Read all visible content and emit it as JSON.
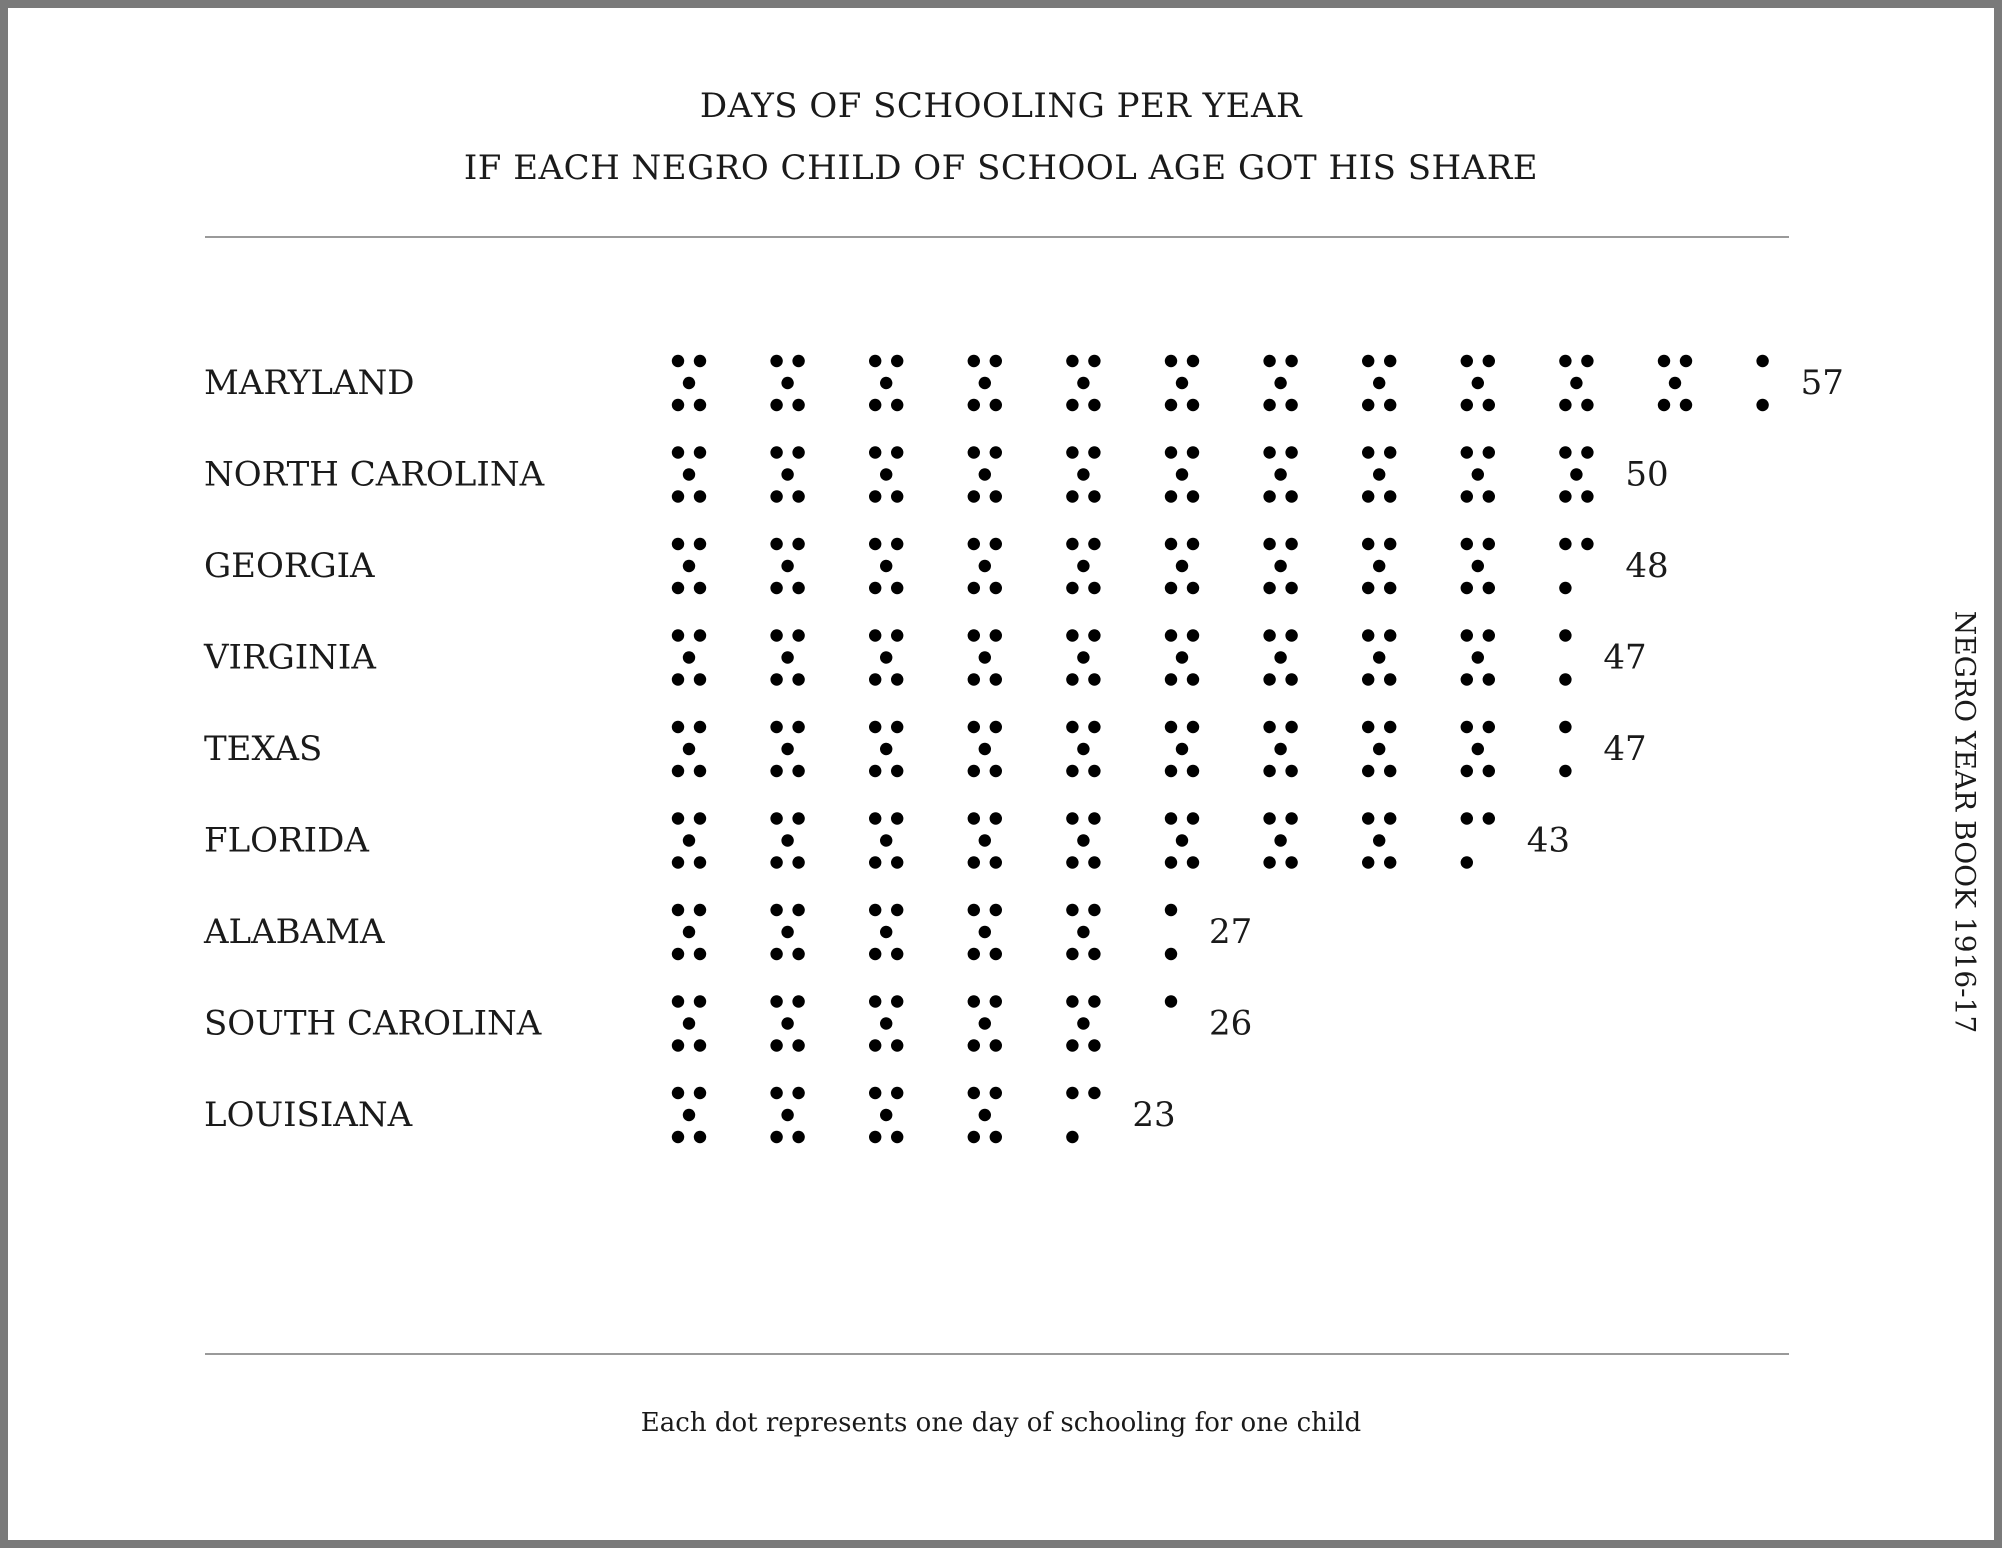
{
  "title": {
    "line1": "DAYS OF SCHOOLING PER YEAR",
    "line2": "IF EACH NEGRO CHILD OF SCHOOL AGE GOT HIS SHARE"
  },
  "footer": "Each dot represents one day of schooling for one child",
  "source": "NEGRO YEAR BOOK 1916-17",
  "colors": {
    "dot": "#000000",
    "text": "#1a1a1a",
    "rule": "#9a9a9a"
  },
  "chart_data": {
    "type": "bar",
    "categories": [
      "MARYLAND",
      "NORTH CAROLINA",
      "GEORGIA",
      "VIRGINIA",
      "TEXAS",
      "FLORIDA",
      "ALABAMA",
      "SOUTH CAROLINA",
      "LOUISIANA"
    ],
    "values": [
      57,
      50,
      48,
      47,
      47,
      43,
      27,
      26,
      23
    ],
    "value_labels": [
      "57",
      "50",
      "48",
      "47",
      "47",
      "43",
      "27",
      "26",
      "23"
    ],
    "units_per_dot": 1,
    "dots_per_group": 5,
    "title": "DAYS OF SCHOOLING PER YEAR",
    "subtitle": "IF EACH NEGRO CHILD OF SCHOOL AGE GOT HIS SHARE",
    "xlabel": "",
    "ylabel": ""
  }
}
